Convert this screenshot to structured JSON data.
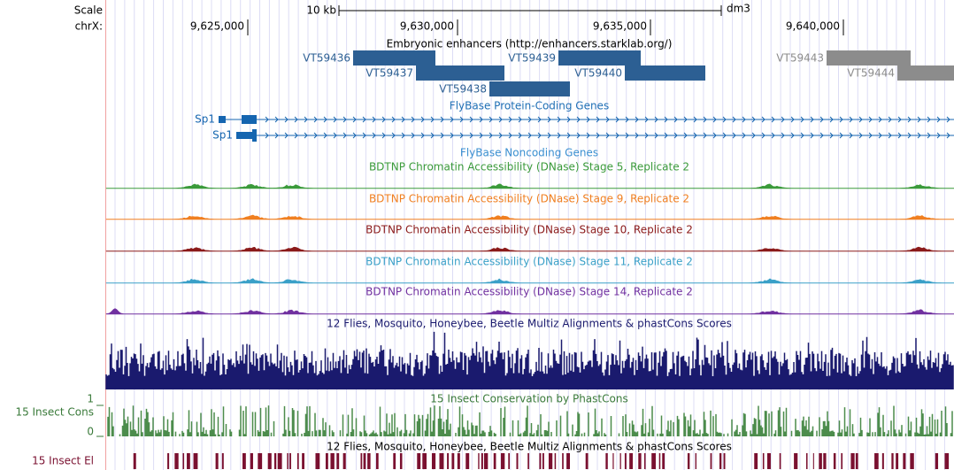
{
  "ruler": {
    "scale_label": "Scale",
    "chrom_label": "chrX:",
    "scale_bar": "10 kb",
    "assembly": "dm3",
    "positions": [
      "9,625,000",
      "9,630,000",
      "9,635,000",
      "9,640,000"
    ]
  },
  "tracks": {
    "enhancers": {
      "title": "Embryonic enhancers (http://enhancers.starklab.org/)",
      "items": [
        "VT59436",
        "VT59437",
        "VT59438",
        "VT59439",
        "VT59440",
        "VT59443",
        "VT59444"
      ]
    },
    "protein_genes": {
      "title": "FlyBase Protein-Coding Genes",
      "genes": [
        "Sp1",
        "Sp1"
      ]
    },
    "noncoding_genes": {
      "title": "FlyBase Noncoding Genes"
    },
    "dnase": [
      "BDTNP Chromatin Accessibility (DNase) Stage 5, Replicate 2",
      "BDTNP Chromatin Accessibility (DNase) Stage 9, Replicate 2",
      "BDTNP Chromatin Accessibility (DNase) Stage 10, Replicate 2",
      "BDTNP Chromatin Accessibility (DNase) Stage 11, Replicate 2",
      "BDTNP Chromatin Accessibility (DNase) Stage 14, Replicate 2"
    ],
    "multiz": {
      "title": "12 Flies, Mosquito, Honeybee, Beetle Multiz Alignments & phastCons Scores"
    },
    "phastcons": {
      "title": "15 Insect Conservation by PhastCons",
      "side_label": "15 Insect Cons",
      "max": 1,
      "min": 0
    },
    "elements": {
      "title": "12 Flies, Mosquito, Honeybee, Beetle Multiz Alignments & phastCons Scores",
      "side_label": "15 Insect El"
    }
  }
}
